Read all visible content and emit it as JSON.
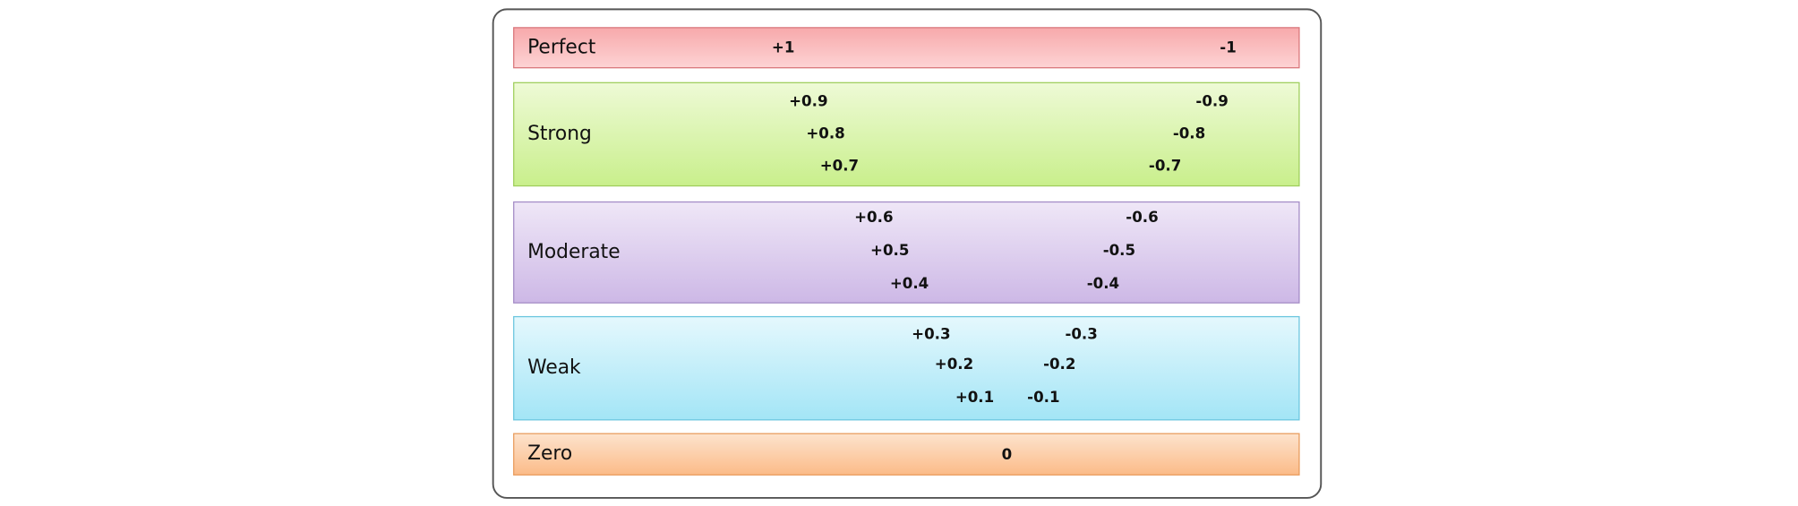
{
  "rows": [
    {
      "label": "Perfect",
      "values": [
        "+1",
        "-1"
      ]
    },
    {
      "label": "Strong",
      "values": [
        "+0.9",
        "-0.9",
        "+0.8",
        "-0.8",
        "+0.7",
        "-0.7"
      ]
    },
    {
      "label": "Moderate",
      "values": [
        "+0.6",
        "-0.6",
        "+0.5",
        "-0.5",
        "+0.4",
        "-0.4"
      ]
    },
    {
      "label": "Weak",
      "values": [
        "+0.3",
        "-0.3",
        "+0.2",
        "-0.2",
        "+0.1",
        "-0.1"
      ]
    },
    {
      "label": "Zero",
      "values": [
        "0"
      ]
    }
  ]
}
